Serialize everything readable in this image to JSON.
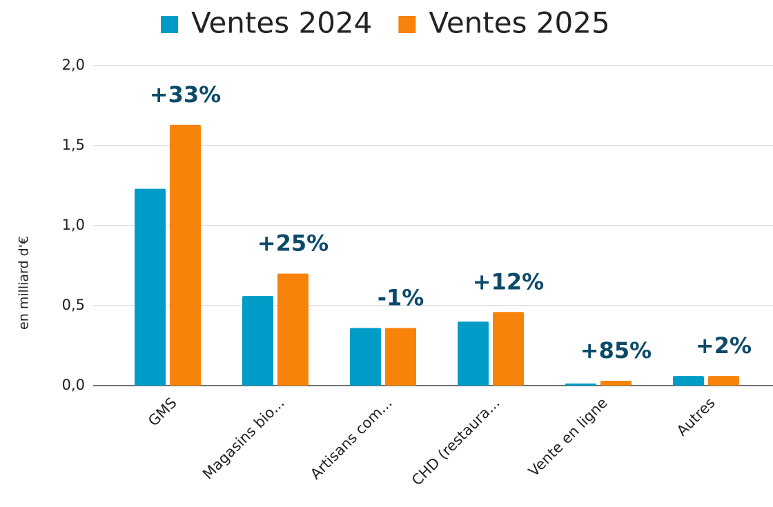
{
  "chart_data": {
    "type": "bar",
    "categories": [
      "GMS",
      "Magasins bio...",
      "Artisans com...",
      "CHD (restaura...",
      "Vente en ligne",
      "Autres"
    ],
    "series": [
      {
        "name": "Ventes 2024",
        "color": "#009cc8",
        "values": [
          1.23,
          0.56,
          0.36,
          0.4,
          0.013,
          0.06
        ]
      },
      {
        "name": "Ventes 2025",
        "color": "#f7830a",
        "values": [
          1.63,
          0.7,
          0.36,
          0.46,
          0.03,
          0.06
        ]
      }
    ],
    "annotations": [
      "+33%",
      "+25%",
      "-1%",
      "+12%",
      "+85%",
      "+2%"
    ],
    "ylabel": "en milliard d'€",
    "ylim": [
      0,
      2
    ],
    "yticks": [
      {
        "value": 0,
        "label": "0,0"
      },
      {
        "value": 0.5,
        "label": "0,5"
      },
      {
        "value": 1,
        "label": "1,0"
      },
      {
        "value": 1.5,
        "label": "1,5"
      },
      {
        "value": 2,
        "label": "2,0"
      }
    ],
    "grid": true,
    "legend": "top"
  }
}
